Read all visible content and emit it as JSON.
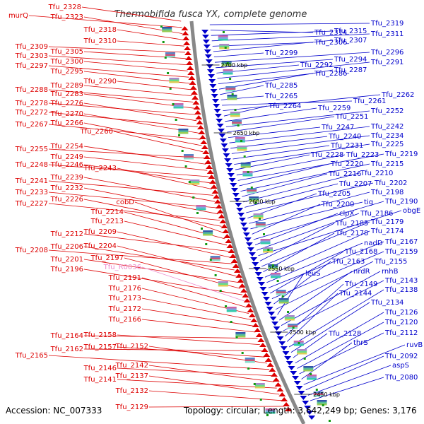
{
  "title": "Thermobifida fusca YX, complete genome",
  "footer": {
    "accession": "Accession: NC_007333",
    "topology": "Topology: circular; Length: 3,642,249 bp; Genes: 3,176"
  },
  "colors": {
    "left_strand": "#dd0000",
    "right_strand": "#0000cc",
    "rna": "#ee88cc",
    "backbone": "#888888",
    "tick": "#119911"
  },
  "scale_marks": [
    "2700 kbp",
    "2650 kbp",
    "2600 kbp",
    "2550 kbp",
    "2500 kbp",
    "2450 kbp"
  ],
  "left_labels": [
    "Tfu_2328",
    "murQ",
    "Tfu_2323",
    "Tfu_2318",
    "Tfu_2310",
    "Tfu_2309",
    "Tfu_2305",
    "Tfu_2303",
    "Tfu_2300",
    "Tfu_2297",
    "Tfu_2295",
    "Tfu_2290",
    "Tfu_2289",
    "Tfu_2288",
    "Tfu_2283",
    "Tfu_2278",
    "Tfu_2276",
    "Tfu_2272",
    "Tfu_2270",
    "Tfu_2267",
    "Tfu_2266",
    "Tfu_2260",
    "Tfu_2255",
    "Tfu_2254",
    "Tfu_2249",
    "Tfu_2248",
    "Tfu_2246",
    "Tfu_2243",
    "Tfu_2241",
    "Tfu_2239",
    "Tfu_2233",
    "Tfu_2232",
    "Tfu_2227",
    "Tfu_2226",
    "cobD",
    "Tfu_2214",
    "Tfu_2213",
    "Tfu_2212",
    "Tfu_2209",
    "Tfu_2208",
    "Tfu_2206",
    "Tfu_2204",
    "Tfu_2201",
    "Tfu_2197",
    "Tfu_2196",
    "Tfu_R0036",
    "Tfu_2191",
    "Tfu_2176",
    "Tfu_2173",
    "Tfu_2172",
    "Tfu_2166",
    "Tfu_2164",
    "Tfu_2158",
    "Tfu_2162",
    "Tfu_2157",
    "Tfu_2152",
    "Tfu_2165",
    "Tfu_2146",
    "Tfu_2142",
    "Tfu_2141",
    "Tfu_2137",
    "Tfu_2132",
    "Tfu_2129"
  ],
  "right_labels": [
    "Tfu_2319",
    "Tfu_2314",
    "Tfu_2315",
    "Tfu_2311",
    "Tfu_2306",
    "Tfu_2307",
    "Tfu_2299",
    "Tfu_2296",
    "Tfu_2294",
    "Tfu_2292",
    "Tfu_2291",
    "Tfu_2286",
    "Tfu_2287",
    "Tfu_2285",
    "Tfu_2265",
    "Tfu_2261",
    "Tfu_2262",
    "Tfu_2264",
    "Tfu_2259",
    "Tfu_2252",
    "Tfu_2251",
    "Tfu_2247",
    "Tfu_2242",
    "Tfu_2240",
    "Tfu_2234",
    "Tfu_2231",
    "Tfu_2225",
    "Tfu_2228",
    "Tfu_2223",
    "Tfu_2219",
    "Tfu_2220",
    "Tfu_2215",
    "Tfu_2216",
    "Tfu_2210",
    "Tfu_2207",
    "Tfu_2202",
    "Tfu_2205",
    "Tfu_2198",
    "tig",
    "Tfu_2200",
    "Tfu_2190",
    "clpX",
    "Tfu_2186",
    "obgE",
    "Tfu_2185",
    "Tfu_2179",
    "Tfu_2178",
    "Tfu_2174",
    "nadD",
    "Tfu_2167",
    "Tfu_2168",
    "Tfu_2159",
    "Tfu_2163",
    "Tfu_2155",
    "leuS",
    "nrdR",
    "rnhB",
    "Tfu_2143",
    "Tfu_2149",
    "Tfu_2144",
    "Tfu_2138",
    "Tfu_2134",
    "Tfu_2128",
    "Tfu_2126",
    "Tfu_2120",
    "Tfu_2112",
    "thrS",
    "ruvB",
    "Tfu_2092",
    "aspS",
    "Tfu_2080"
  ]
}
